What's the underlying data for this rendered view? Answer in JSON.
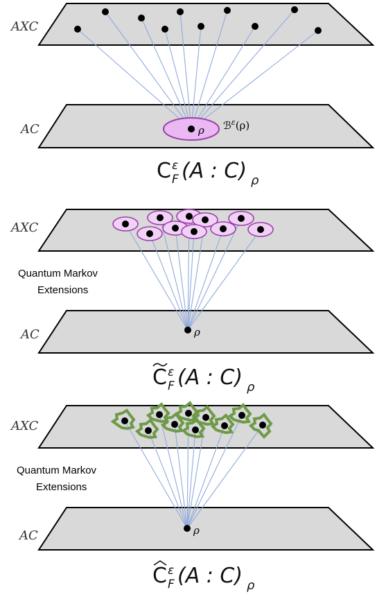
{
  "panels": [
    {
      "top_label": "AXC",
      "bottom_label": "AC",
      "state_label": "ρ",
      "ball_label": "ℬ^ε(ρ)",
      "note": "",
      "formula": {
        "base": "C",
        "sup": "ε",
        "sub": "F",
        "args": "(A : C)",
        "state": "ρ",
        "accent": ""
      }
    },
    {
      "top_label": "AXC",
      "bottom_label": "AC",
      "state_label": "ρ",
      "note_line1": "Quantum Markov",
      "note_line2": "Extensions",
      "formula": {
        "base": "C",
        "sup": "ε",
        "sub": "F",
        "args": "(A : C)",
        "state": "ρ",
        "accent": "tilde"
      }
    },
    {
      "top_label": "AXC",
      "bottom_label": "AC",
      "state_label": "ρ",
      "note_line1": "Quantum Markov",
      "note_line2": "Extensions",
      "formula": {
        "base": "C",
        "sup": "ε",
        "sub": "F",
        "args": "(A : C)",
        "state": "ρ",
        "accent": "hat"
      }
    }
  ],
  "colors": {
    "plane_fill": "#d9d9d9",
    "ray": "#8faadc",
    "ball_fill": "#eab8f2",
    "ball_stroke": "#9b3fa8",
    "neighborhood_green": "#6e9a46"
  }
}
